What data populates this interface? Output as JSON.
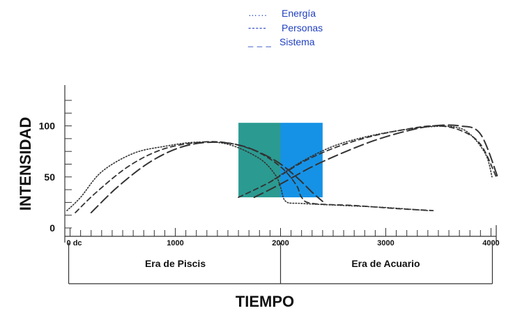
{
  "chart_data": {
    "type": "line",
    "xlabel": "TIEMPO",
    "ylabel": "INTENSIDAD",
    "xlim": [
      -50,
      4050
    ],
    "ylim": [
      0,
      140
    ],
    "y_ticks": [
      {
        "value": 0,
        "label": "0"
      },
      {
        "value": 50,
        "label": "50"
      },
      {
        "value": 100,
        "label": "100"
      }
    ],
    "x_ticks": [
      {
        "value": 0,
        "label": "0 dc"
      },
      {
        "value": 1000,
        "label": "1000"
      },
      {
        "value": 2000,
        "label": "2000"
      },
      {
        "value": 3000,
        "label": "3000"
      },
      {
        "value": 4000,
        "label": "4000"
      }
    ],
    "minor_tick_step": 100,
    "legend": {
      "position": "top-center",
      "entries": [
        {
          "symbol": "…...",
          "label": "Energía",
          "style": "dotted"
        },
        {
          "symbol": "-----",
          "label": "Personas",
          "style": "short-dash"
        },
        {
          "symbol": "_ _ _",
          "label": "Sistema",
          "style": "long-dash"
        }
      ]
    },
    "eras": [
      {
        "label": "Era de Piscis",
        "from": 0,
        "to": 2000
      },
      {
        "label": "Era de Acuario",
        "from": 2000,
        "to": 4000
      }
    ],
    "shaded_regions": [
      {
        "x0": 1600,
        "x1": 2000,
        "y0": 30,
        "y1": 103,
        "color": "#2b9a91"
      },
      {
        "x0": 2000,
        "x1": 2400,
        "y0": 30,
        "y1": 103,
        "color": "#1592e6"
      }
    ],
    "series": [
      {
        "name": "Energía",
        "style": "dotted",
        "x": [
          -30,
          100,
          300,
          600,
          900,
          1200,
          1500,
          1800,
          1950,
          2000,
          2050,
          2200,
          2600,
          3000,
          3400
        ],
        "y": [
          17,
          30,
          55,
          73,
          80,
          84,
          82,
          68,
          52,
          40,
          26,
          24,
          22,
          20,
          17
        ],
        "x2": [
          1900,
          2200,
          2500,
          2800,
          3100,
          3400,
          3650,
          3800,
          3950,
          4010
        ],
        "y2": [
          45,
          65,
          80,
          89,
          95,
          99,
          99,
          92,
          72,
          50
        ]
      },
      {
        "name": "Personas",
        "style": "short-dash",
        "x": [
          50,
          250,
          550,
          850,
          1150,
          1450,
          1750,
          2000,
          2150,
          2200,
          2300,
          2700,
          3100,
          3450
        ],
        "y": [
          15,
          35,
          60,
          76,
          83,
          84,
          76,
          60,
          42,
          30,
          24,
          22,
          19,
          17
        ],
        "x2": [
          1600,
          1900,
          2200,
          2500,
          2800,
          3100,
          3450,
          3700,
          3900,
          4050
        ],
        "y2": [
          30,
          45,
          64,
          78,
          88,
          95,
          100,
          96,
          82,
          50
        ]
      },
      {
        "name": "Sistema",
        "style": "long-dash",
        "x": [
          200,
          450,
          750,
          1050,
          1350,
          1650,
          1950,
          2150,
          2300,
          2400
        ],
        "y": [
          15,
          40,
          64,
          79,
          84,
          80,
          66,
          50,
          35,
          26
        ],
        "x2": [
          1750,
          2000,
          2300,
          2600,
          2900,
          3200,
          3450,
          3700,
          3900,
          4070
        ],
        "y2": [
          30,
          43,
          60,
          74,
          86,
          95,
          100,
          100,
          92,
          48
        ]
      }
    ]
  }
}
